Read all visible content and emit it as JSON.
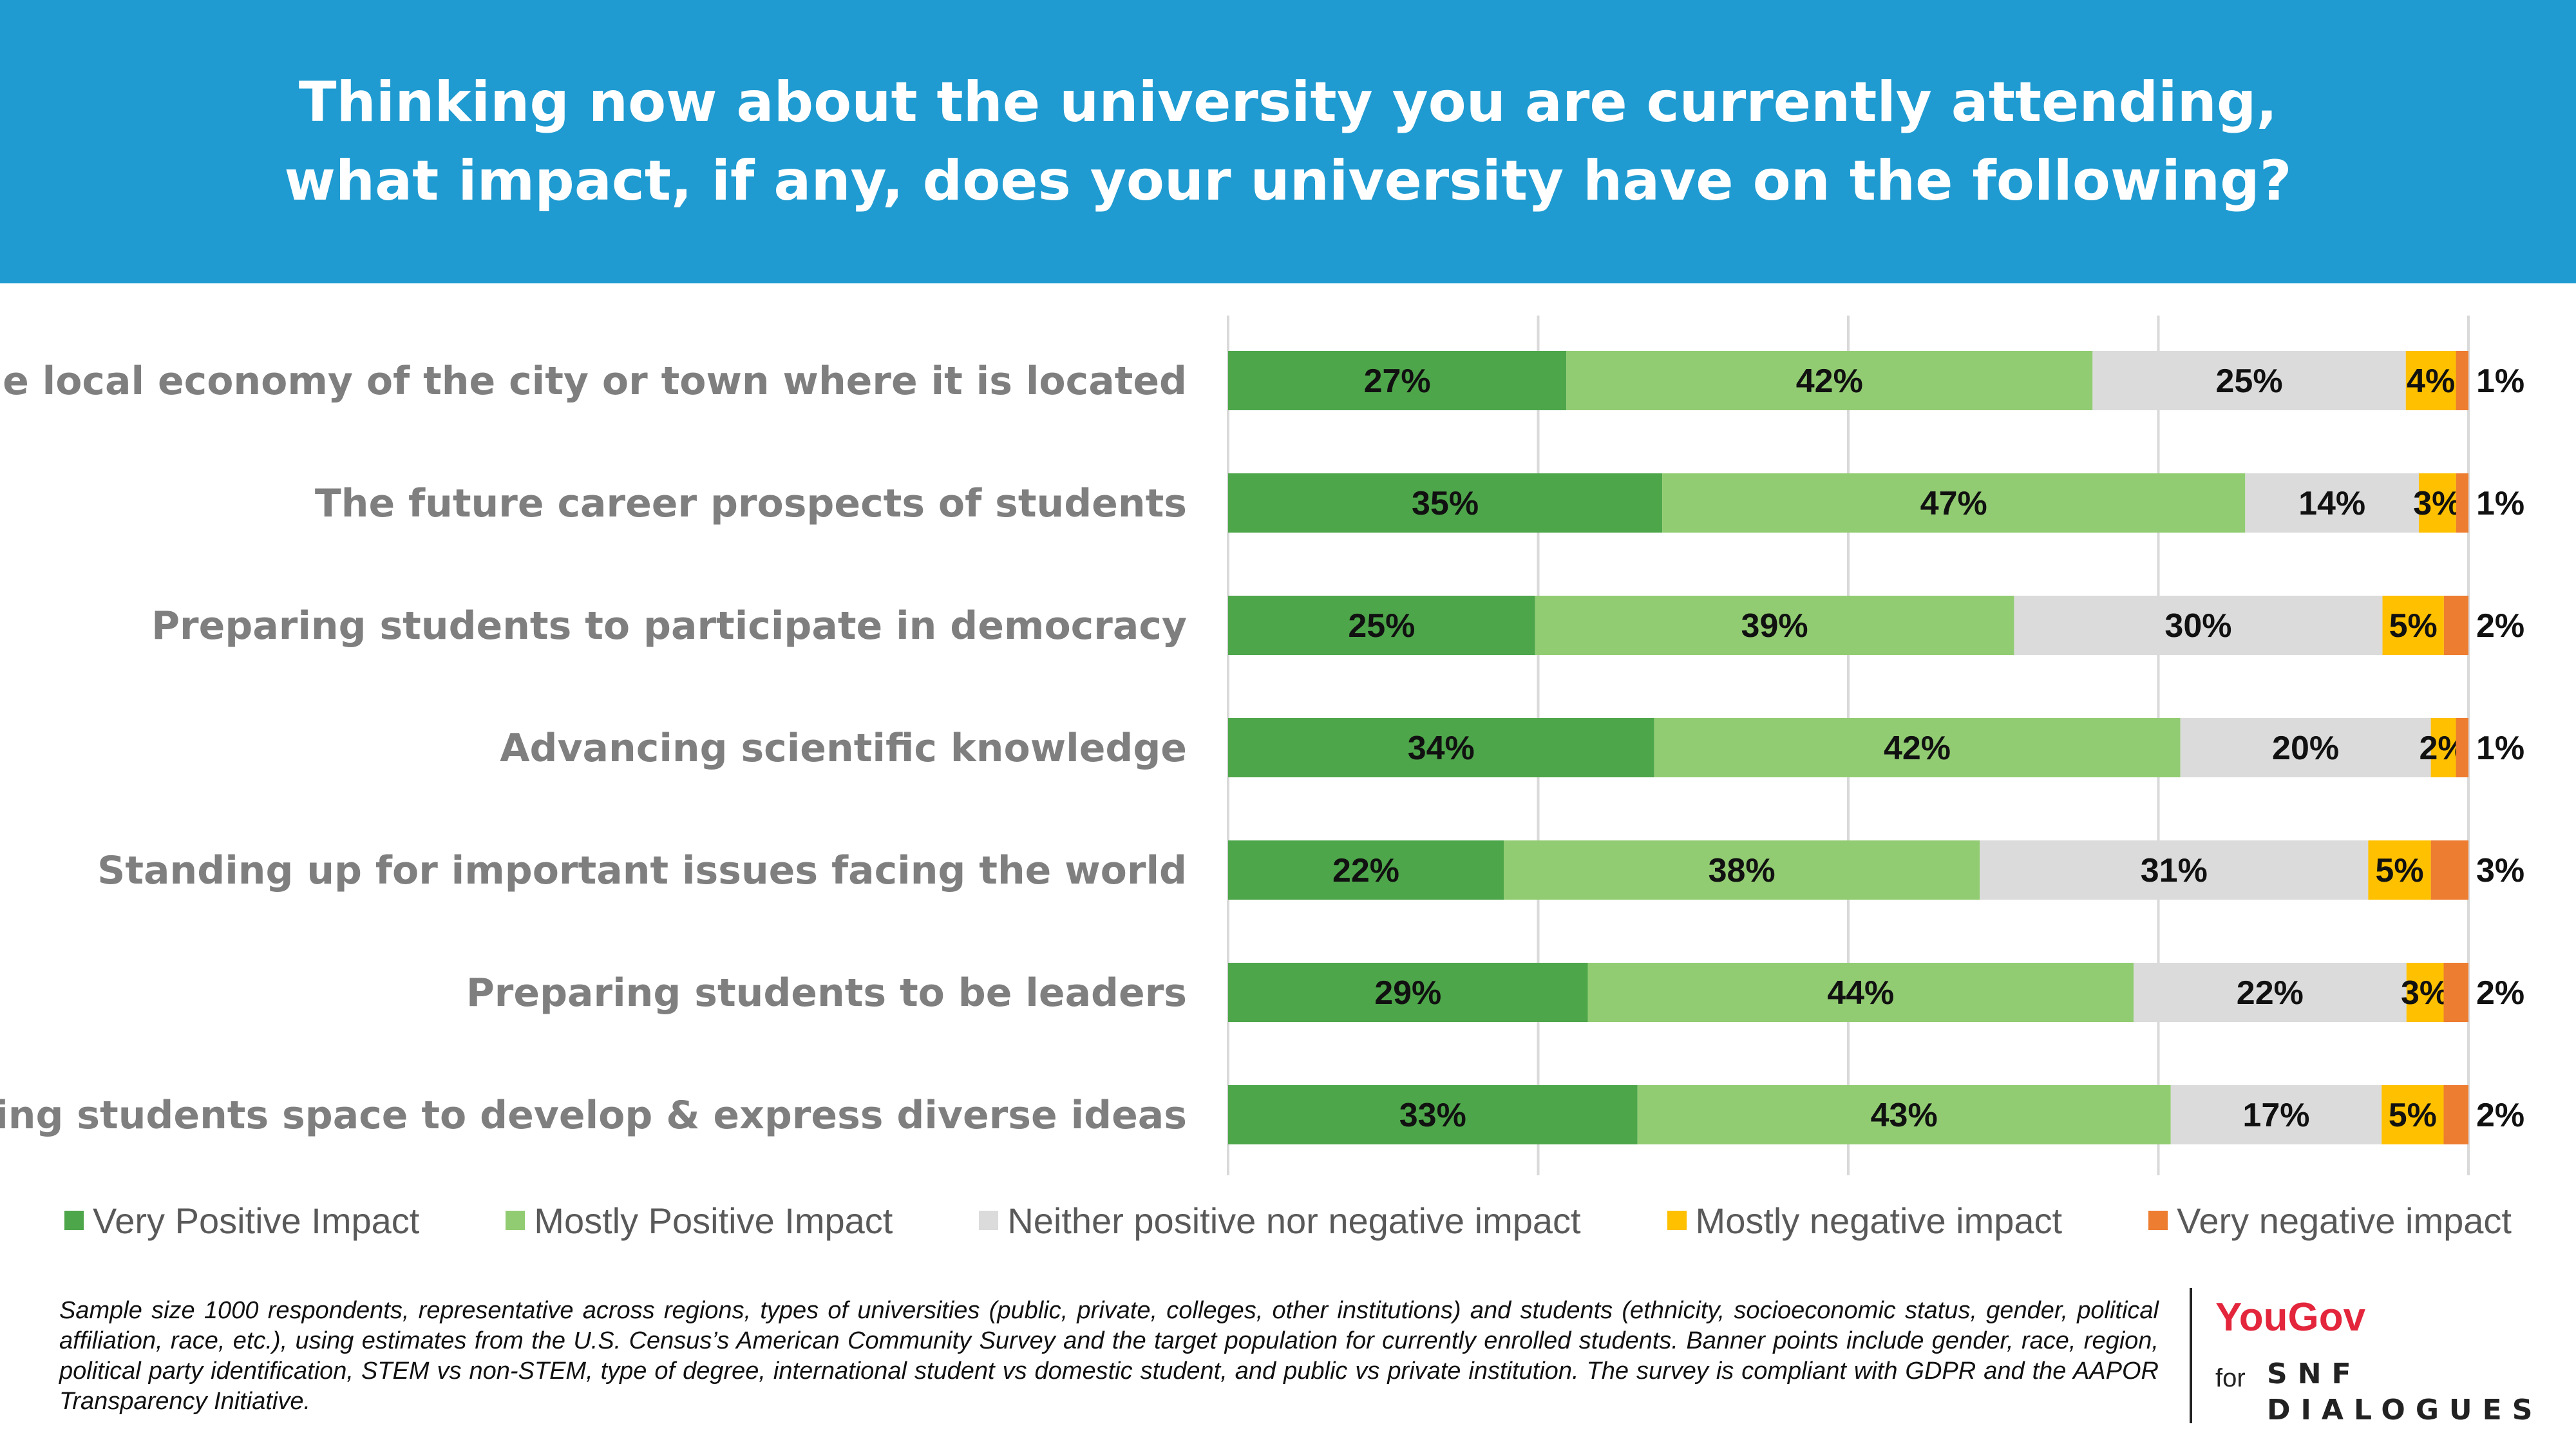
{
  "header": {
    "title_line1": "Thinking now about the university you are currently attending,",
    "title_line2": "what impact, if any, does your university have on the following?"
  },
  "chart_data": {
    "type": "bar",
    "orientation": "horizontal",
    "stacked": true,
    "percent": true,
    "grid": true,
    "legend_position": "bottom",
    "categories": [
      "The local economy of the city or town where it is located",
      "The future career prospects of students",
      "Preparing students to participate in democracy",
      "Advancing scientific knowledge",
      "Standing up for important issues facing the world",
      "Preparing students to be leaders",
      "Giving students space to develop & express diverse ideas"
    ],
    "series": [
      {
        "name": "Very Positive Impact",
        "color": "#4ea64a",
        "values": [
          27,
          35,
          25,
          34,
          22,
          29,
          33
        ]
      },
      {
        "name": "Mostly Positive Impact",
        "color": "#92cc72",
        "values": [
          42,
          47,
          39,
          42,
          38,
          44,
          43
        ]
      },
      {
        "name": "Neither positive nor negative impact",
        "color": "#dbdbdb",
        "values": [
          25,
          14,
          30,
          20,
          31,
          22,
          17
        ]
      },
      {
        "name": "Mostly negative impact",
        "color": "#ffc000",
        "values": [
          4,
          3,
          5,
          2,
          5,
          3,
          5
        ]
      },
      {
        "name": "Very negative impact",
        "color": "#ed7d31",
        "values": [
          1,
          1,
          2,
          1,
          3,
          2,
          2
        ]
      }
    ]
  },
  "footnote": "Sample size 1000 respondents, representative across regions, types of universities (public, private, colleges, other institutions) and students (ethnicity, socioeconomic status, gender, political affiliation, race, etc.), using estimates from the U.S. Census’s American Community Survey and the target population for currently enrolled students. Banner points include gender, race, region, political party identification, STEM vs non-STEM, type of degree, international student vs domestic student, and public vs private institution. The survey is compliant with GDPR and the AAPOR Transparency Initiative.",
  "branding": {
    "yougov": "YouGov",
    "for": "for",
    "snf_line1": "SNF",
    "snf_line2": "DIALOGUES"
  }
}
